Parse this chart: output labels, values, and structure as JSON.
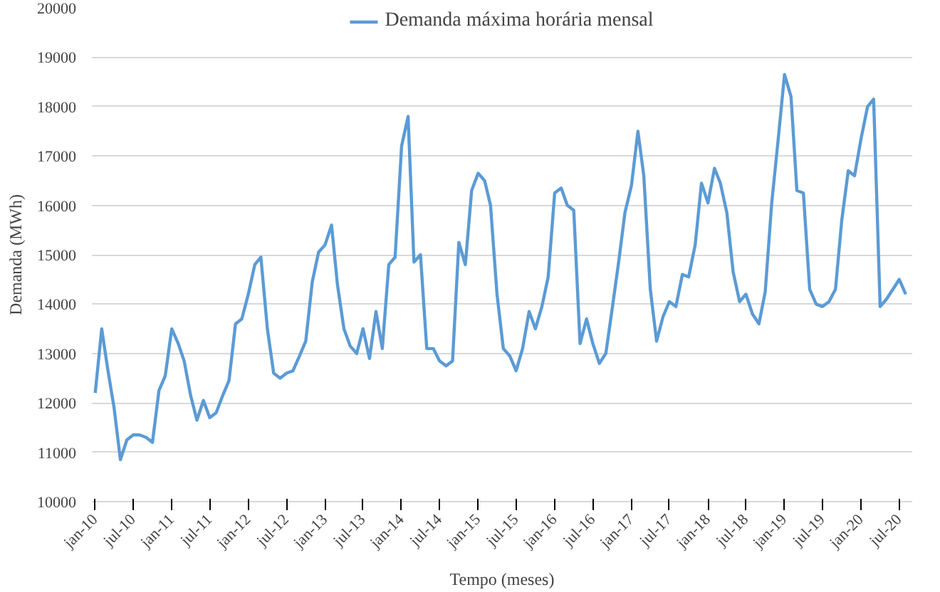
{
  "chart_data": {
    "type": "line",
    "xlabel": "Tempo (meses)",
    "ylabel": "Demanda (MWh)",
    "x": [
      "2010-01",
      "2010-02",
      "2010-03",
      "2010-04",
      "2010-05",
      "2010-06",
      "2010-07",
      "2010-08",
      "2010-09",
      "2010-10",
      "2010-11",
      "2010-12",
      "2011-01",
      "2011-02",
      "2011-03",
      "2011-04",
      "2011-05",
      "2011-06",
      "2011-07",
      "2011-08",
      "2011-09",
      "2011-10",
      "2011-11",
      "2011-12",
      "2012-01",
      "2012-02",
      "2012-03",
      "2012-04",
      "2012-05",
      "2012-06",
      "2012-07",
      "2012-08",
      "2012-09",
      "2012-10",
      "2012-11",
      "2012-12",
      "2013-01",
      "2013-02",
      "2013-03",
      "2013-04",
      "2013-05",
      "2013-06",
      "2013-07",
      "2013-08",
      "2013-09",
      "2013-10",
      "2013-11",
      "2013-12",
      "2014-01",
      "2014-02",
      "2014-03",
      "2014-04",
      "2014-05",
      "2014-06",
      "2014-07",
      "2014-08",
      "2014-09",
      "2014-10",
      "2014-11",
      "2014-12",
      "2015-01",
      "2015-02",
      "2015-03",
      "2015-04",
      "2015-05",
      "2015-06",
      "2015-07",
      "2015-08",
      "2015-09",
      "2015-10",
      "2015-11",
      "2015-12",
      "2016-01",
      "2016-02",
      "2016-03",
      "2016-04",
      "2016-05",
      "2016-06",
      "2016-07",
      "2016-08",
      "2016-09",
      "2016-10",
      "2016-11",
      "2016-12",
      "2017-01",
      "2017-02",
      "2017-03",
      "2017-04",
      "2017-05",
      "2017-06",
      "2017-07",
      "2017-08",
      "2017-09",
      "2017-10",
      "2017-11",
      "2017-12",
      "2018-01",
      "2018-02",
      "2018-03",
      "2018-04",
      "2018-05",
      "2018-06",
      "2018-07",
      "2018-08",
      "2018-09",
      "2018-10",
      "2018-11",
      "2018-12",
      "2019-01",
      "2019-02",
      "2019-03",
      "2019-04",
      "2019-05",
      "2019-06",
      "2019-07",
      "2019-08",
      "2019-09",
      "2019-10",
      "2019-11",
      "2019-12",
      "2020-01",
      "2020-02",
      "2020-03",
      "2020-04",
      "2020-05",
      "2020-06",
      "2020-07",
      "2020-08"
    ],
    "series": [
      {
        "name": "Demanda máxima horária mensal",
        "color": "#5b9bd5",
        "values": [
          12200,
          13500,
          12700,
          11900,
          10850,
          11250,
          11350,
          11350,
          11300,
          11200,
          12250,
          12550,
          13500,
          13200,
          12850,
          12150,
          11650,
          12050,
          11700,
          11800,
          12150,
          12450,
          13600,
          13700,
          14200,
          14800,
          14950,
          13500,
          12600,
          12500,
          12600,
          12650,
          12950,
          13250,
          14450,
          15050,
          15200,
          15600,
          14400,
          13500,
          13150,
          13000,
          13500,
          12900,
          13850,
          13100,
          14800,
          14950,
          17200,
          17800,
          14850,
          15000,
          13100,
          13100,
          12850,
          12750,
          12850,
          15250,
          14800,
          16300,
          16650,
          16500,
          16000,
          14200,
          13100,
          12950,
          12650,
          13100,
          13850,
          13500,
          13950,
          14550,
          16250,
          16350,
          16000,
          15900,
          13200,
          13700,
          13200,
          12800,
          13000,
          13900,
          14850,
          15850,
          16400,
          17500,
          16600,
          14300,
          13250,
          13750,
          14050,
          13950,
          14600,
          14550,
          15200,
          16450,
          16050,
          16750,
          16450,
          15850,
          14650,
          14050,
          14200,
          13800,
          13600,
          14250,
          16050,
          17300,
          18650,
          18200,
          16300,
          16250,
          14300,
          14000,
          13950,
          14050,
          14300,
          15700,
          16700,
          16600,
          17350,
          18000,
          18150,
          13950,
          14100,
          14300,
          14500,
          14200
        ]
      }
    ],
    "xlim": [
      "2009-12-16",
      "2020-09-01"
    ],
    "xticks": [
      {
        "value": "2010-01",
        "label": "jan-10"
      },
      {
        "value": "2010-07",
        "label": "jul-10"
      },
      {
        "value": "2011-01",
        "label": "jan-11"
      },
      {
        "value": "2011-07",
        "label": "jul-11"
      },
      {
        "value": "2012-01",
        "label": "jan-12"
      },
      {
        "value": "2012-07",
        "label": "jul-12"
      },
      {
        "value": "2013-01",
        "label": "jan-13"
      },
      {
        "value": "2013-07",
        "label": "jul-13"
      },
      {
        "value": "2014-01",
        "label": "jan-14"
      },
      {
        "value": "2014-07",
        "label": "jul-14"
      },
      {
        "value": "2015-01",
        "label": "jan-15"
      },
      {
        "value": "2015-07",
        "label": "jul-15"
      },
      {
        "value": "2016-01",
        "label": "jan-16"
      },
      {
        "value": "2016-07",
        "label": "jul-16"
      },
      {
        "value": "2017-01",
        "label": "jan-17"
      },
      {
        "value": "2017-07",
        "label": "jul-17"
      },
      {
        "value": "2018-01",
        "label": "jan-18"
      },
      {
        "value": "2018-07",
        "label": "jul-18"
      },
      {
        "value": "2019-01",
        "label": "jan-19"
      },
      {
        "value": "2019-07",
        "label": "jul-19"
      },
      {
        "value": "2020-01",
        "label": "jan-20"
      },
      {
        "value": "2020-07",
        "label": "jul-20"
      }
    ],
    "ylim": [
      10000,
      20000
    ],
    "yticks": [
      10000,
      11000,
      12000,
      13000,
      14000,
      15000,
      16000,
      17000,
      18000,
      19000,
      20000
    ],
    "grid": "y",
    "legend": "top",
    "marker": "none",
    "line_style": "solid"
  }
}
